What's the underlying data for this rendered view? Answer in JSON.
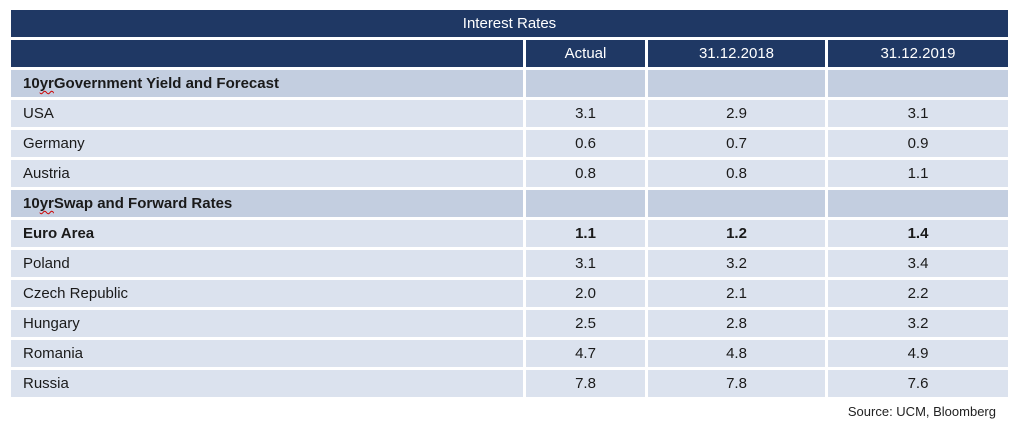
{
  "colors": {
    "navy": "#1f3864",
    "section_bg": "#c3cee0",
    "row_bg": "#dbe2ee",
    "text": "#1a1a1a",
    "misspell_red": "#cc0000"
  },
  "table": {
    "title": "Interest Rates",
    "columns": [
      "",
      "Actual",
      "31.12.2018",
      "31.12.2019"
    ],
    "rows": [
      {
        "type": "section",
        "label_prefix": "10 ",
        "label_misspelled": "yr",
        "label_rest": " Government Yield and Forecast",
        "values": [
          "",
          "",
          ""
        ]
      },
      {
        "type": "data",
        "label": "USA",
        "values": [
          "3.1",
          "2.9",
          "3.1"
        ]
      },
      {
        "type": "data",
        "label": "Germany",
        "values": [
          "0.6",
          "0.7",
          "0.9"
        ]
      },
      {
        "type": "data",
        "label": "Austria",
        "values": [
          "0.8",
          "0.8",
          "1.1"
        ]
      },
      {
        "type": "section",
        "label_prefix": "10 ",
        "label_misspelled": "yr",
        "label_rest": " Swap and Forward Rates",
        "values": [
          "",
          "",
          ""
        ]
      },
      {
        "type": "data-bold",
        "label": "Euro Area",
        "values": [
          "1.1",
          "1.2",
          "1.4"
        ]
      },
      {
        "type": "data",
        "label": "Poland",
        "values": [
          "3.1",
          "3.2",
          "3.4"
        ]
      },
      {
        "type": "data",
        "label": "Czech Republic",
        "values": [
          "2.0",
          "2.1",
          "2.2"
        ]
      },
      {
        "type": "data",
        "label": "Hungary",
        "values": [
          "2.5",
          "2.8",
          "3.2"
        ]
      },
      {
        "type": "data",
        "label": "Romania",
        "values": [
          "4.7",
          "4.8",
          "4.9"
        ]
      },
      {
        "type": "data",
        "label": "Russia",
        "values": [
          "7.8",
          "7.8",
          "7.6"
        ]
      }
    ]
  },
  "source": "Source: UCM, Bloomberg"
}
